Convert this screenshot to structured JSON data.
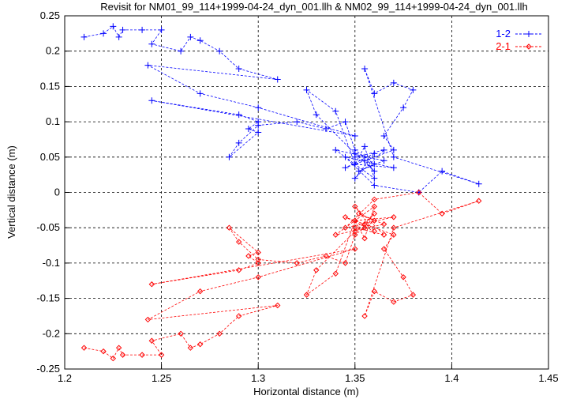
{
  "chart_data": {
    "type": "line",
    "title": "Revisit for NM01_99_114+1999-04-24_dyn_001.llh & NM02_99_114+1999-04-24_dyn_001.llh",
    "xlabel": "Horizontal distance (m)",
    "ylabel": "Vertical distance (m)",
    "xlim": [
      1.2,
      1.45
    ],
    "ylim": [
      -0.25,
      0.25
    ],
    "xticks": [
      "1.2",
      "1.25",
      "1.3",
      "1.35",
      "1.4",
      "1.45"
    ],
    "yticks": [
      "0.25",
      "0.2",
      "0.15",
      "0.1",
      "0.05",
      "0",
      "-0.05",
      "-0.1",
      "-0.15",
      "-0.2",
      "-0.25"
    ],
    "grid": true,
    "legend_position": "top-right",
    "series": [
      {
        "name": "1-2",
        "color": "#0000ff",
        "marker": "plus",
        "x": [
          1.21,
          1.22,
          1.225,
          1.228,
          1.23,
          1.24,
          1.25,
          1.245,
          1.26,
          1.265,
          1.27,
          1.28,
          1.29,
          1.31,
          1.243,
          1.27,
          1.3,
          1.35,
          1.245,
          1.29,
          1.3,
          1.295,
          1.3,
          1.285,
          1.29,
          1.3,
          1.32,
          1.335,
          1.345,
          1.35,
          1.355,
          1.36,
          1.352,
          1.365,
          1.34,
          1.36,
          1.355,
          1.35,
          1.37,
          1.345,
          1.36,
          1.383,
          1.395,
          1.414,
          1.37,
          1.355,
          1.36,
          1.37,
          1.38,
          1.375,
          1.365,
          1.37,
          1.35,
          1.34,
          1.325,
          1.33,
          1.35,
          1.36,
          1.355,
          1.345,
          1.36,
          1.35,
          1.365,
          1.35
        ],
        "y": [
          0.22,
          0.225,
          0.235,
          0.22,
          0.23,
          0.23,
          0.23,
          0.21,
          0.2,
          0.22,
          0.215,
          0.2,
          0.175,
          0.16,
          0.18,
          0.14,
          0.12,
          0.08,
          0.13,
          0.11,
          0.1,
          0.09,
          0.085,
          0.05,
          0.07,
          0.095,
          0.1,
          0.09,
          0.1,
          0.06,
          0.05,
          0.04,
          0.03,
          0.045,
          0.06,
          0.02,
          0.065,
          0.04,
          0.035,
          0.05,
          0.01,
          0.0,
          0.03,
          0.012,
          0.05,
          0.175,
          0.14,
          0.155,
          0.145,
          0.12,
          0.08,
          0.06,
          0.04,
          0.115,
          0.145,
          0.11,
          0.055,
          0.03,
          0.045,
          0.035,
          0.055,
          0.02,
          0.06,
          0.05
        ]
      },
      {
        "name": "2-1",
        "color": "#ff0000",
        "marker": "diamond",
        "x": [
          1.21,
          1.22,
          1.225,
          1.228,
          1.23,
          1.24,
          1.25,
          1.245,
          1.26,
          1.265,
          1.27,
          1.28,
          1.29,
          1.31,
          1.243,
          1.27,
          1.3,
          1.35,
          1.245,
          1.29,
          1.3,
          1.295,
          1.3,
          1.285,
          1.29,
          1.3,
          1.32,
          1.335,
          1.345,
          1.35,
          1.355,
          1.36,
          1.352,
          1.365,
          1.34,
          1.36,
          1.355,
          1.35,
          1.37,
          1.345,
          1.36,
          1.383,
          1.395,
          1.414,
          1.37,
          1.355,
          1.36,
          1.37,
          1.38,
          1.375,
          1.365,
          1.37,
          1.35,
          1.34,
          1.325,
          1.33,
          1.35,
          1.36,
          1.355,
          1.345,
          1.36,
          1.35,
          1.365,
          1.35
        ],
        "y": [
          -0.22,
          -0.225,
          -0.235,
          -0.22,
          -0.23,
          -0.23,
          -0.23,
          -0.21,
          -0.2,
          -0.22,
          -0.215,
          -0.2,
          -0.175,
          -0.16,
          -0.18,
          -0.14,
          -0.12,
          -0.08,
          -0.13,
          -0.11,
          -0.1,
          -0.09,
          -0.085,
          -0.05,
          -0.07,
          -0.095,
          -0.1,
          -0.09,
          -0.1,
          -0.06,
          -0.05,
          -0.04,
          -0.03,
          -0.045,
          -0.06,
          -0.02,
          -0.065,
          -0.04,
          -0.035,
          -0.05,
          -0.01,
          0.0,
          -0.03,
          -0.012,
          -0.05,
          -0.175,
          -0.14,
          -0.155,
          -0.145,
          -0.12,
          -0.08,
          -0.06,
          -0.04,
          -0.115,
          -0.145,
          -0.11,
          -0.055,
          -0.03,
          -0.045,
          -0.035,
          -0.055,
          -0.02,
          -0.06,
          -0.05
        ]
      }
    ]
  }
}
